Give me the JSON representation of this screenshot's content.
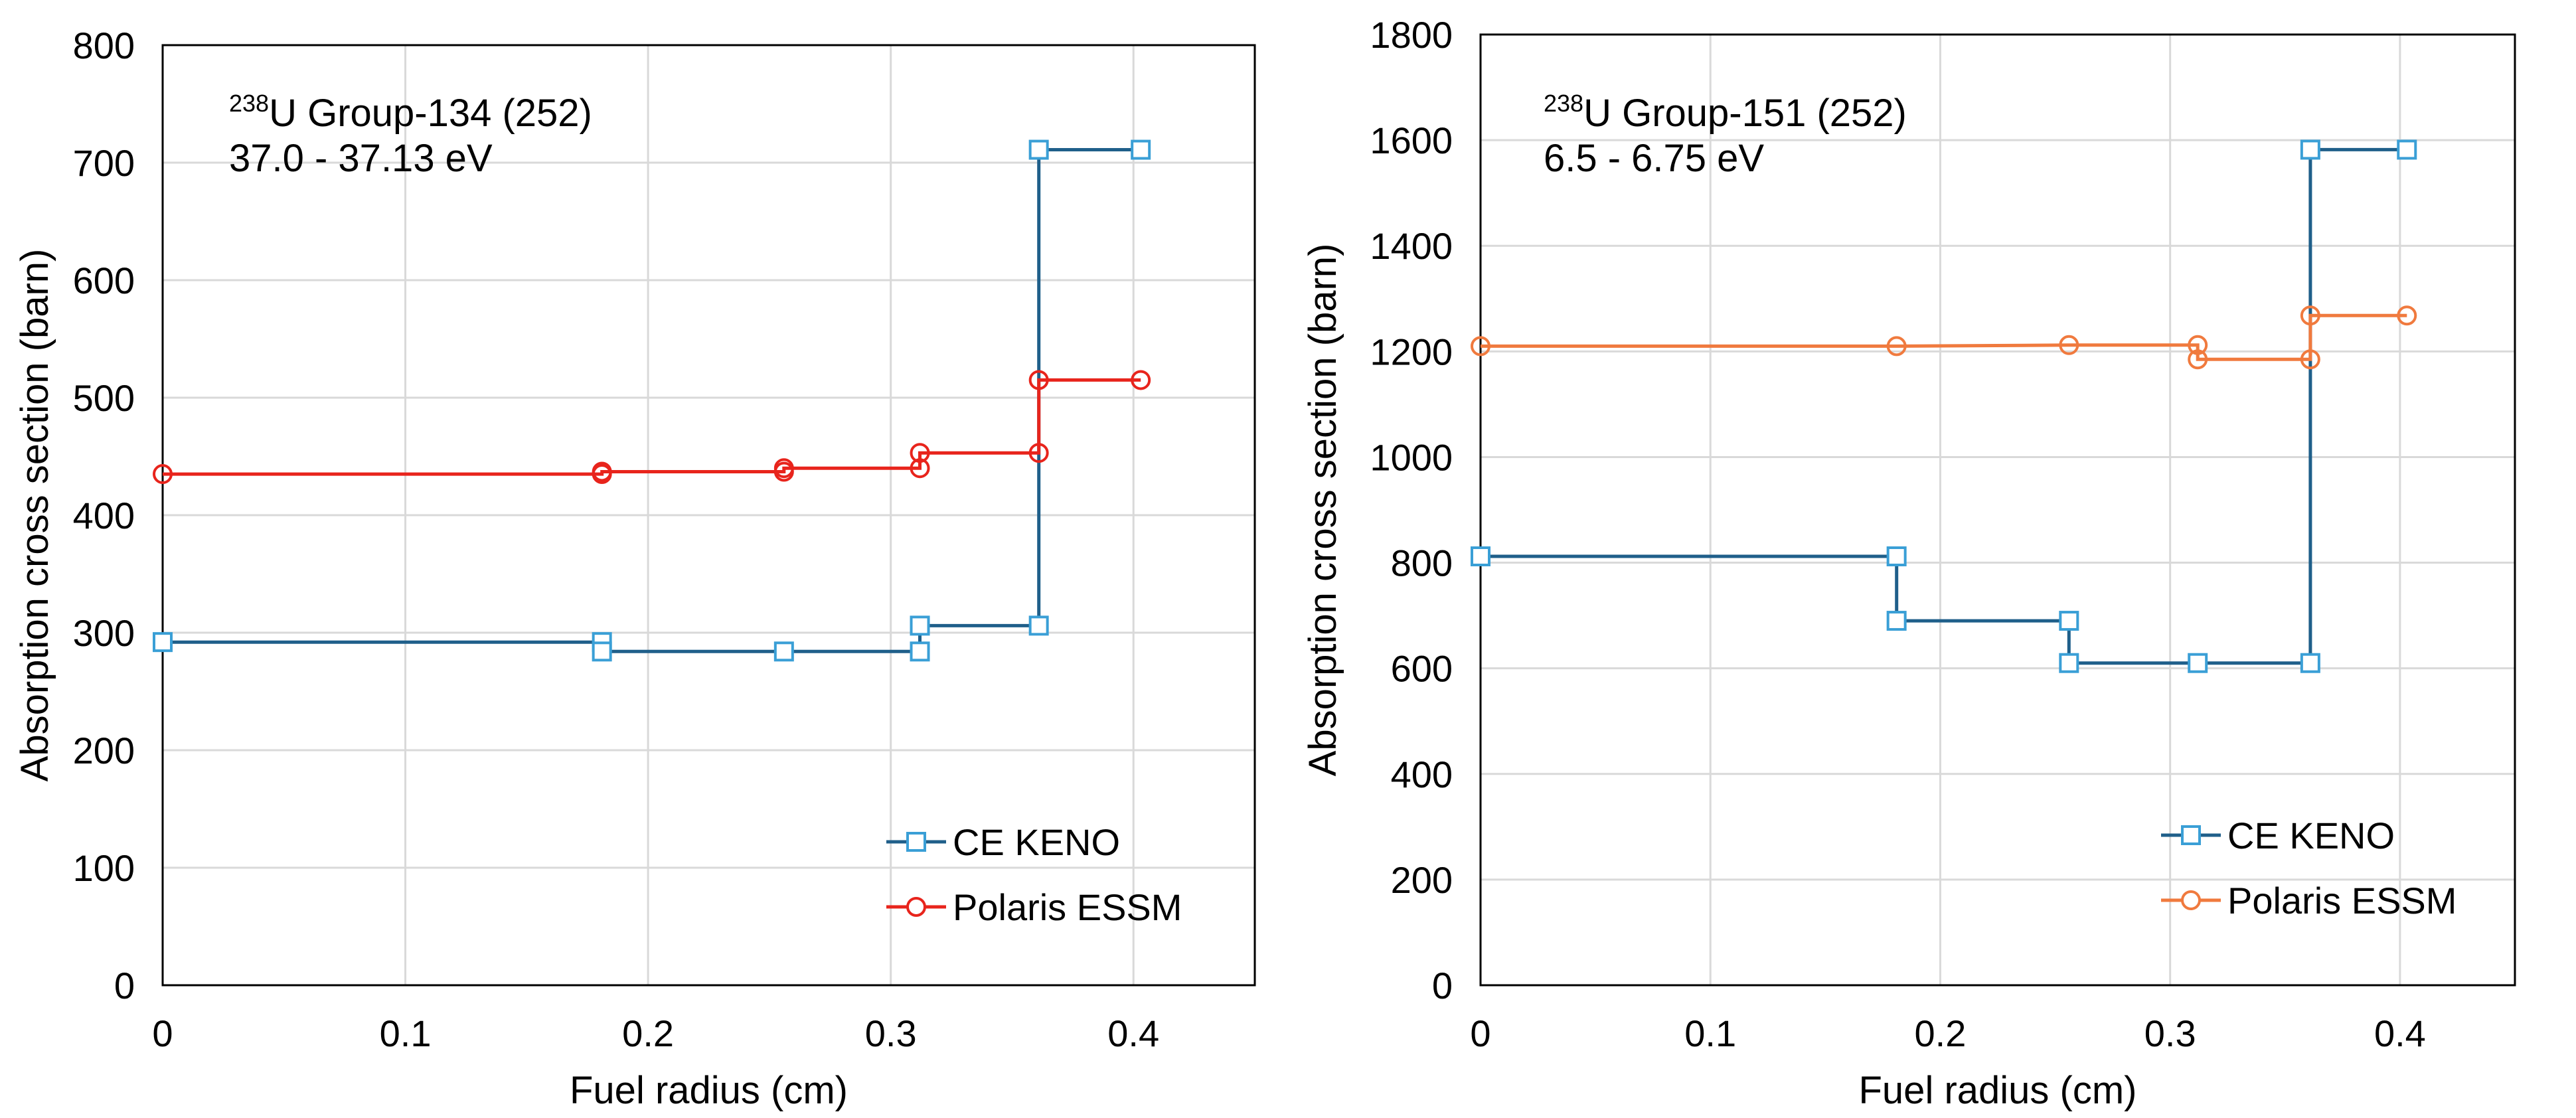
{
  "chart_data": [
    {
      "type": "line",
      "step": true,
      "xlabel": "Fuel radius (cm)",
      "ylabel": "Absorption cross section (barn)",
      "xlim": [
        0,
        0.45
      ],
      "ylim": [
        0,
        800
      ],
      "xticks": [
        "0",
        "0.1",
        "0.2",
        "0.3",
        "0.4"
      ],
      "xtick_values": [
        0,
        0.1,
        0.2,
        0.3,
        0.4
      ],
      "yticks": [
        "0",
        "100",
        "200",
        "300",
        "400",
        "500",
        "600",
        "700",
        "800"
      ],
      "ytick_values": [
        0,
        100,
        200,
        300,
        400,
        500,
        600,
        700,
        800
      ],
      "grid": true,
      "legend_position": "bottom-right",
      "annotation": {
        "sup": "238",
        "line1": "U Group-134  (252)",
        "line2": "37.0 - 37.13 eV"
      },
      "series": [
        {
          "name": "CE KENO",
          "color": "#1f5f8a",
          "marker": "square",
          "marker_color": "#3a9fd6",
          "points": [
            [
              0,
              292
            ],
            [
              0.181,
              292
            ],
            [
              0.181,
              284
            ],
            [
              0.256,
              284
            ],
            [
              0.312,
              284
            ],
            [
              0.312,
              306
            ],
            [
              0.361,
              306
            ],
            [
              0.361,
              711
            ],
            [
              0.403,
              711
            ]
          ]
        },
        {
          "name": "Polaris ESSM",
          "color": "#e8241c",
          "marker": "circle",
          "marker_color": "#e8241c",
          "points": [
            [
              0,
              435
            ],
            [
              0.181,
              435
            ],
            [
              0.181,
              437
            ],
            [
              0.256,
              437
            ],
            [
              0.256,
              440
            ],
            [
              0.312,
              440
            ],
            [
              0.312,
              453
            ],
            [
              0.361,
              453
            ],
            [
              0.361,
              515
            ],
            [
              0.403,
              515
            ]
          ]
        }
      ]
    },
    {
      "type": "line",
      "step": true,
      "xlabel": "Fuel radius (cm)",
      "ylabel": "Absorption cross section (barn)",
      "xlim": [
        0,
        0.45
      ],
      "ylim": [
        0,
        1800
      ],
      "xticks": [
        "0",
        "0.1",
        "0.2",
        "0.3",
        "0.4"
      ],
      "xtick_values": [
        0,
        0.1,
        0.2,
        0.3,
        0.4
      ],
      "yticks": [
        "0",
        "200",
        "400",
        "600",
        "800",
        "1000",
        "1200",
        "1400",
        "1600",
        "1800"
      ],
      "ytick_values": [
        0,
        200,
        400,
        600,
        800,
        1000,
        1200,
        1400,
        1600,
        1800
      ],
      "grid": true,
      "legend_position": "bottom-right",
      "annotation": {
        "sup": "238",
        "line1": "U Group-151  (252)",
        "line2": "6.5 - 6.75 eV"
      },
      "series": [
        {
          "name": "CE KENO",
          "color": "#1f5f8a",
          "marker": "square",
          "marker_color": "#3a9fd6",
          "points": [
            [
              0,
              812
            ],
            [
              0.181,
              812
            ],
            [
              0.181,
              690
            ],
            [
              0.256,
              690
            ],
            [
              0.256,
              610
            ],
            [
              0.312,
              610
            ],
            [
              0.361,
              610
            ],
            [
              0.361,
              1582
            ],
            [
              0.403,
              1582
            ]
          ]
        },
        {
          "name": "Polaris ESSM",
          "color": "#f07a3e",
          "marker": "circle",
          "marker_color": "#f07a3e",
          "points": [
            [
              0,
              1210
            ],
            [
              0.181,
              1210
            ],
            [
              0.256,
              1212
            ],
            [
              0.312,
              1212
            ],
            [
              0.312,
              1185
            ],
            [
              0.361,
              1185
            ],
            [
              0.361,
              1268
            ],
            [
              0.403,
              1268
            ]
          ]
        }
      ]
    }
  ]
}
